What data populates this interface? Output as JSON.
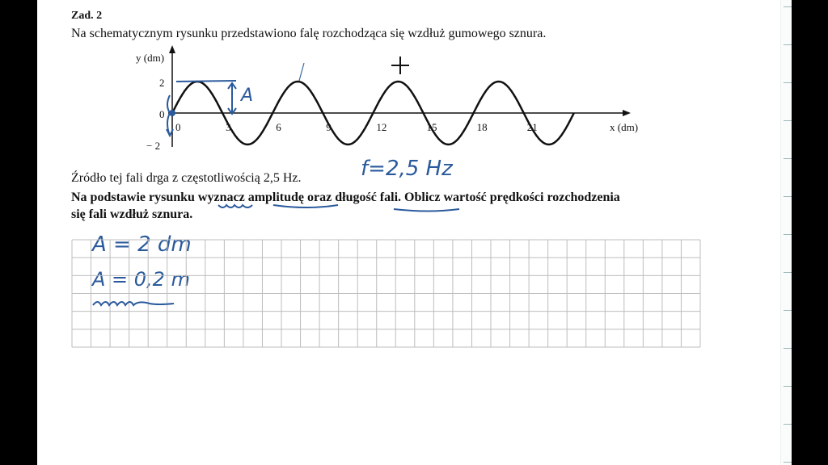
{
  "task": {
    "number": "Zad. 2",
    "intro": "Na schematycznym rysunku przedstawiono falę rozchodząca się wzdłuż gumowego sznura.",
    "source_text": "Źródło tej fali drga z częstotliwością 2,5 Hz.",
    "question_line1": "Na podstawie rysunku wyznacz amplitudę oraz długość fali. Oblicz wartość prędkości rozchodzenia",
    "question_line2": "się fali wzdłuż sznura."
  },
  "chart_data": {
    "type": "line",
    "xlabel": "x (dm)",
    "ylabel": "y (dm)",
    "x_ticks": [
      "0",
      "3",
      "6",
      "9",
      "12",
      "15",
      "18",
      "21"
    ],
    "y_ticks": [
      "2",
      "0",
      "− 2"
    ],
    "function": "y = 2 sin(2πx/6)",
    "amplitude": 2,
    "wavelength": 6,
    "xlim": [
      0,
      24
    ],
    "ylim": [
      -2,
      2
    ]
  },
  "handwriting": {
    "amplitude_label": "A",
    "frequency": "f=2,5 Hz",
    "answer1": "A = 2 dm",
    "answer2": "A = 0,2 m"
  },
  "colors": {
    "ink": "#2b5a9c",
    "text": "#111111",
    "grid": "#bdbdbd"
  }
}
